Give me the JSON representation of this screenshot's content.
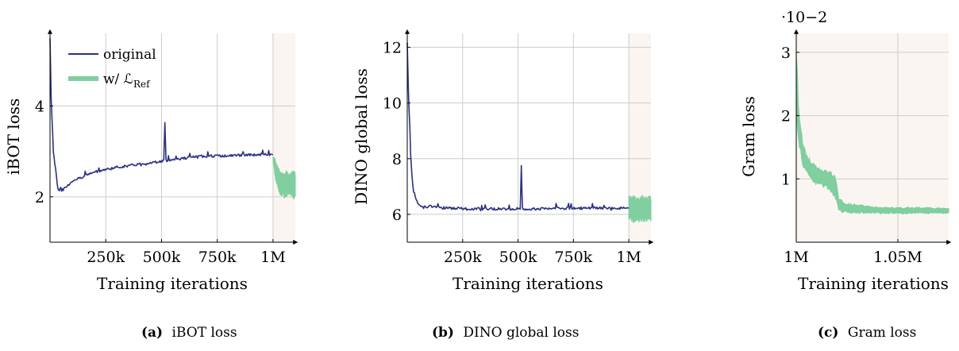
{
  "colors": {
    "original": "#2b3185",
    "ref": "#7fcf9f",
    "shade": "#fbf5f1",
    "grid": "#cccccc"
  },
  "chart_data": [
    {
      "type": "line",
      "xlabel": "Training iterations",
      "ylabel": "iBOT loss",
      "caption_tag": "(a)",
      "caption_text": "iBOT loss",
      "xlim": [
        0,
        1100000
      ],
      "ylim": [
        1,
        5.6
      ],
      "xticks": [
        250000,
        500000,
        750000,
        1000000
      ],
      "xtick_labels": [
        "250k",
        "500k",
        "750k",
        "1M"
      ],
      "yticks": [
        2,
        4
      ],
      "ytick_labels": [
        "2",
        "4"
      ],
      "shaded_from": 1000000,
      "legend": {
        "placement": "top-left",
        "entries": [
          "original",
          "w/ ℒRef"
        ]
      },
      "series": [
        {
          "name": "original",
          "x": [
            0,
            5000,
            15000,
            25000,
            35000,
            45000,
            55000,
            70000,
            100000,
            150000,
            200000,
            250000,
            300000,
            350000,
            400000,
            450000,
            500000,
            510000,
            515000,
            520000,
            550000,
            600000,
            650000,
            700000,
            750000,
            800000,
            850000,
            900000,
            950000,
            1000000
          ],
          "y": [
            5.5,
            4.2,
            3.0,
            2.6,
            2.2,
            2.1,
            2.15,
            2.2,
            2.35,
            2.45,
            2.55,
            2.6,
            2.65,
            2.68,
            2.72,
            2.75,
            2.78,
            2.8,
            3.65,
            2.8,
            2.82,
            2.85,
            2.88,
            2.9,
            2.9,
            2.9,
            2.92,
            2.92,
            2.93,
            2.93
          ]
        },
        {
          "name": "w/ ℒRef",
          "x": [
            1000000,
            1010000,
            1020000,
            1030000,
            1040000,
            1050000,
            1060000,
            1070000,
            1080000,
            1090000,
            1100000
          ],
          "y_low": [
            2.8,
            2.4,
            2.2,
            2.05,
            2.0,
            1.95,
            2.0,
            2.05,
            2.0,
            1.95,
            1.95
          ],
          "y_high": [
            2.9,
            2.85,
            2.7,
            2.6,
            2.55,
            2.55,
            2.6,
            2.5,
            2.55,
            2.6,
            2.55
          ]
        }
      ]
    },
    {
      "type": "line",
      "xlabel": "Training iterations",
      "ylabel": "DINO global loss",
      "caption_tag": "(b)",
      "caption_text": "DINO global loss",
      "xlim": [
        0,
        1100000
      ],
      "ylim": [
        5,
        12.5
      ],
      "xticks": [
        250000,
        500000,
        750000,
        1000000
      ],
      "xtick_labels": [
        "250k",
        "500k",
        "750k",
        "1M"
      ],
      "yticks": [
        6,
        8,
        10,
        12
      ],
      "ytick_labels": [
        "6",
        "8",
        "10",
        "12"
      ],
      "shaded_from": 1000000,
      "series": [
        {
          "name": "original",
          "x": [
            0,
            5000,
            15000,
            25000,
            40000,
            55000,
            70000,
            100000,
            150000,
            200000,
            300000,
            400000,
            500000,
            510000,
            515000,
            520000,
            600000,
            700000,
            800000,
            900000,
            1000000
          ],
          "y": [
            12.2,
            10.5,
            8.2,
            7.0,
            6.5,
            6.3,
            6.25,
            6.3,
            6.25,
            6.22,
            6.2,
            6.2,
            6.2,
            6.2,
            7.6,
            6.2,
            6.2,
            6.22,
            6.22,
            6.22,
            6.22
          ]
        },
        {
          "name": "w/ ℒRef",
          "x": [
            1000000,
            1020000,
            1040000,
            1060000,
            1080000,
            1100000
          ],
          "y_low": [
            5.8,
            5.7,
            5.75,
            5.7,
            5.75,
            5.75
          ],
          "y_high": [
            6.65,
            6.7,
            6.6,
            6.7,
            6.65,
            6.7
          ]
        }
      ]
    },
    {
      "type": "line",
      "xlabel": "Training iterations",
      "ylabel": "Gram loss",
      "caption_tag": "(c)",
      "caption_text": "Gram loss",
      "axis_multiplier": "·10−2",
      "xlim": [
        1000000,
        1075000
      ],
      "ylim": [
        0,
        3.3
      ],
      "xticks": [
        1000000,
        1050000
      ],
      "xtick_labels": [
        "1M",
        "1.05M"
      ],
      "yticks": [
        1,
        2,
        3
      ],
      "ytick_labels": [
        "1",
        "2",
        "3"
      ],
      "series": [
        {
          "name": "w/ ℒRef",
          "x": [
            1000000,
            1001000,
            1003000,
            1006000,
            1010000,
            1015000,
            1019000,
            1021000,
            1025000,
            1030000,
            1040000,
            1050000,
            1060000,
            1075000
          ],
          "y_low": [
            2.0,
            1.6,
            1.2,
            1.0,
            0.9,
            0.85,
            0.7,
            0.48,
            0.45,
            0.45,
            0.45,
            0.44,
            0.45,
            0.45
          ],
          "y_high": [
            3.2,
            2.3,
            1.6,
            1.35,
            1.2,
            1.15,
            1.1,
            0.7,
            0.62,
            0.6,
            0.56,
            0.55,
            0.56,
            0.54
          ]
        }
      ]
    }
  ]
}
